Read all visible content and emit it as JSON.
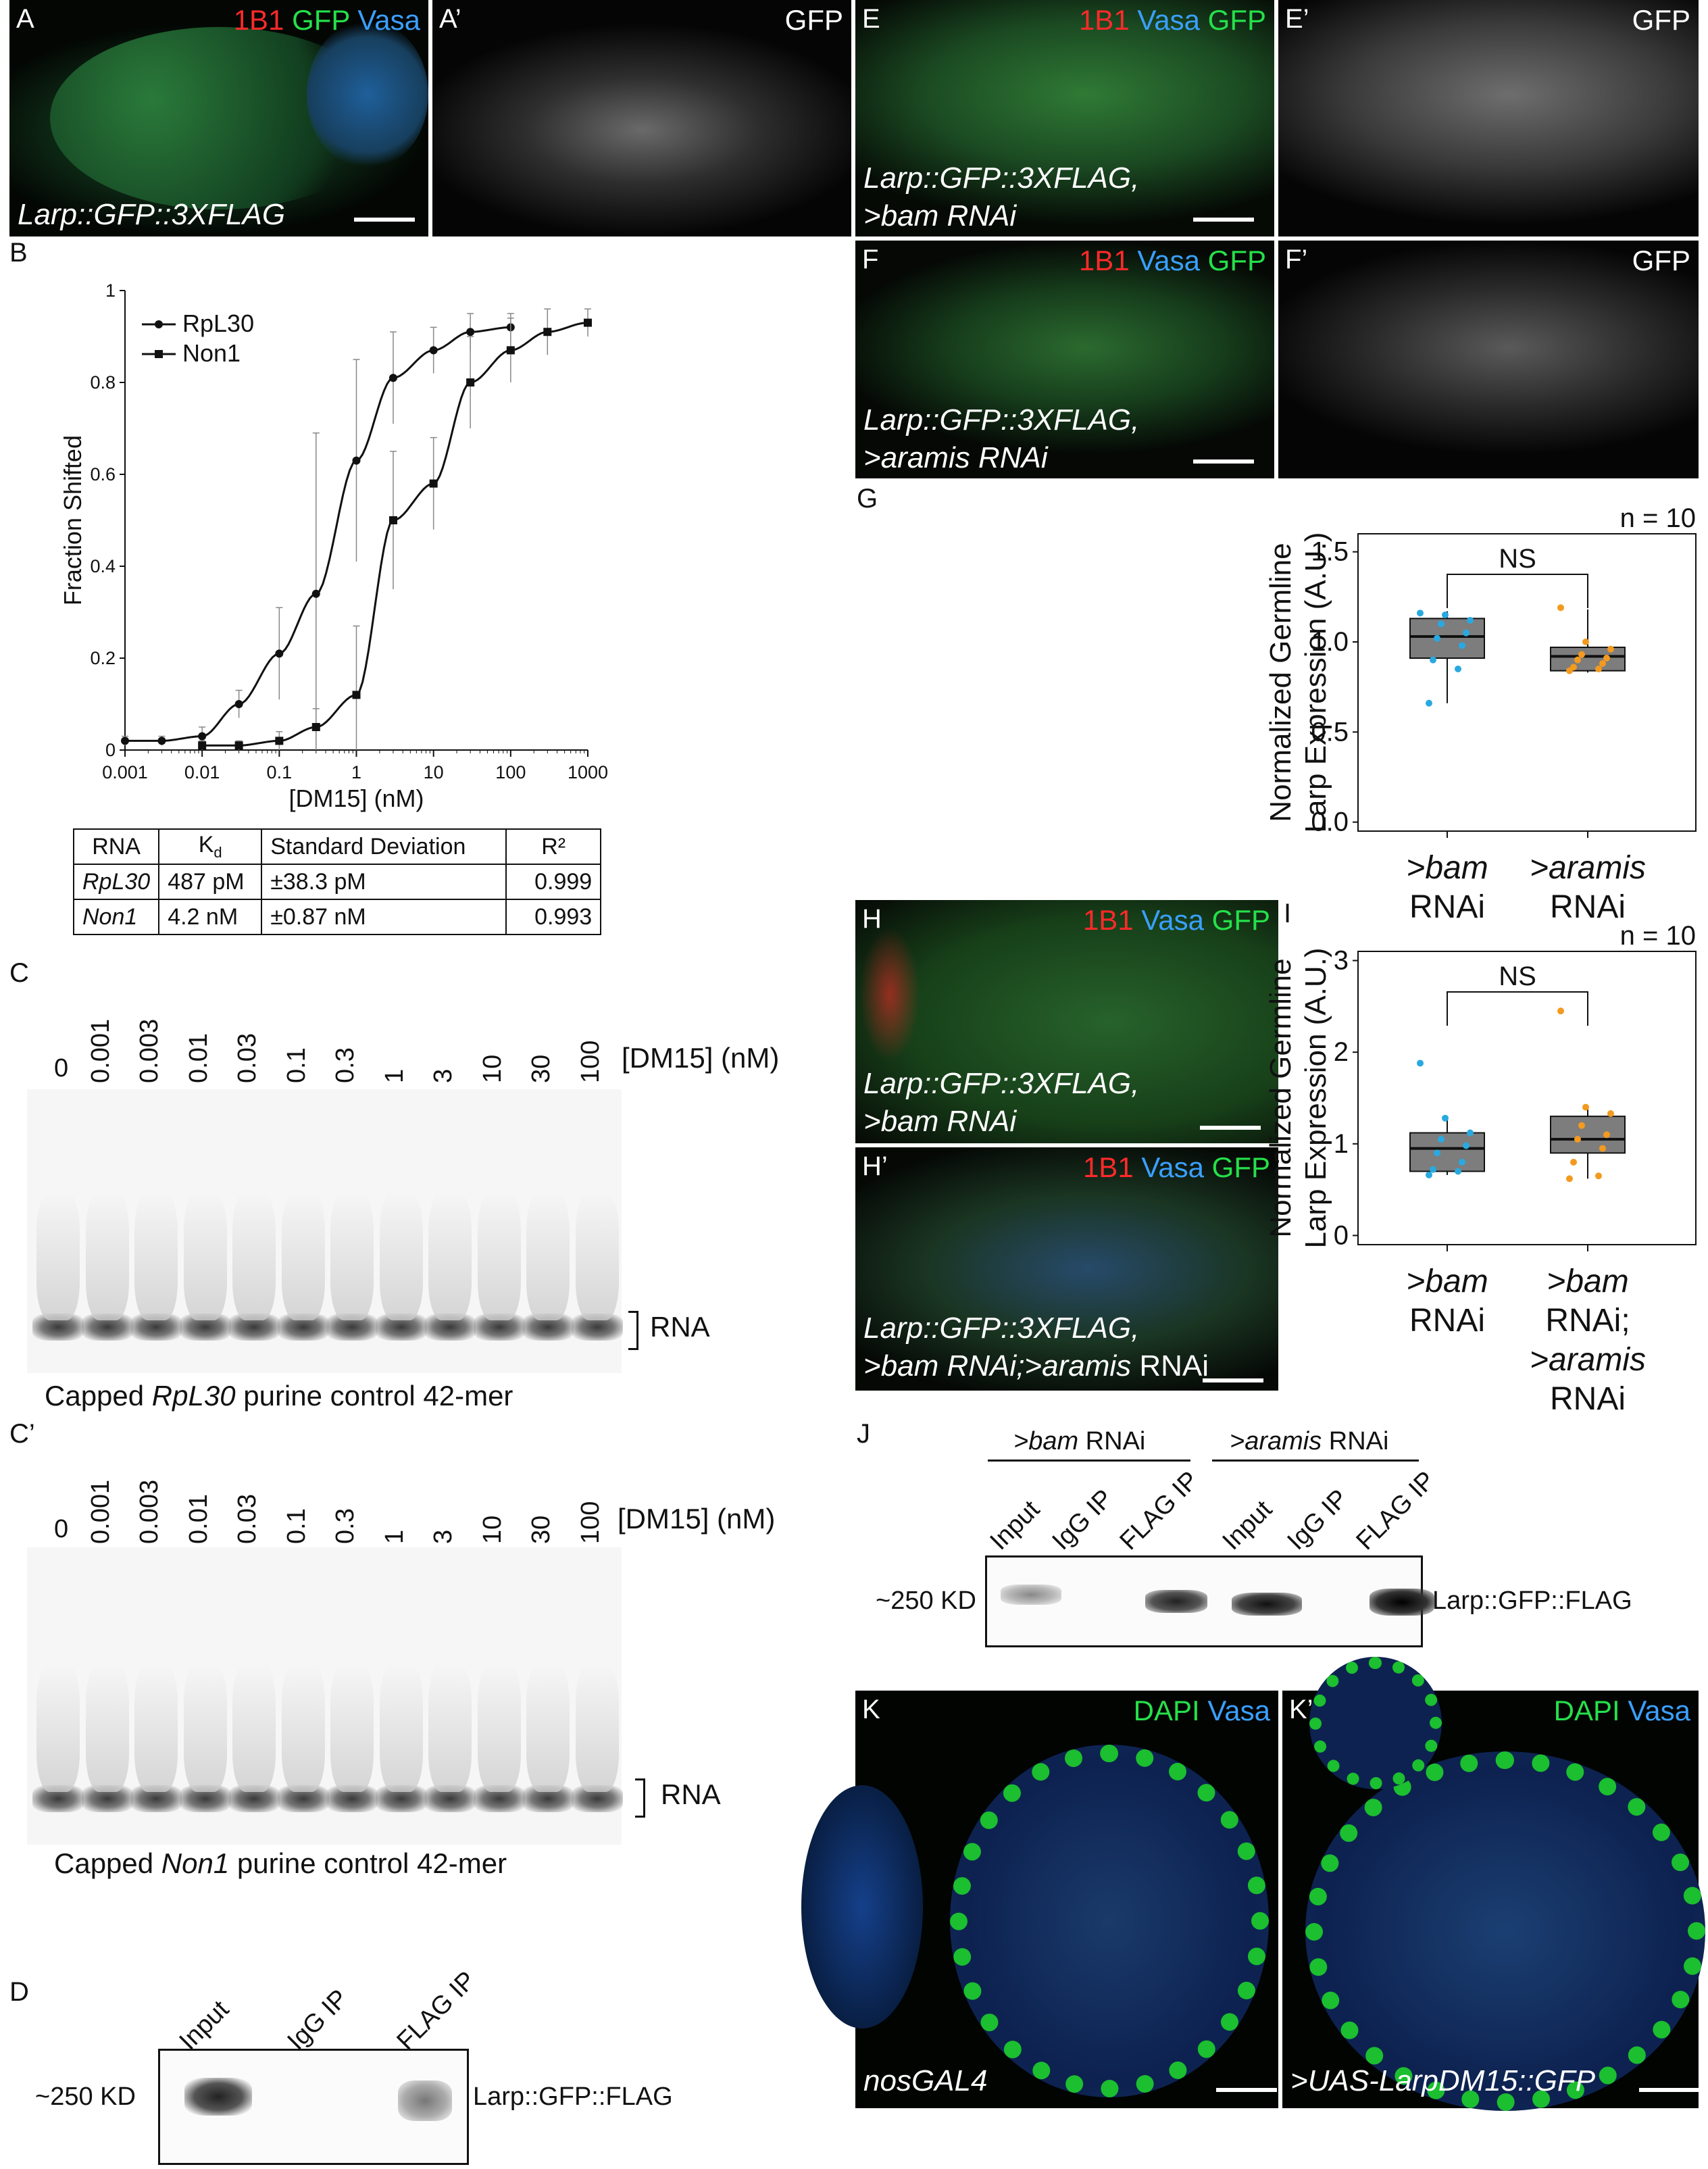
{
  "panels": {
    "A": {
      "letter": "A",
      "ch1": "1B1",
      "ch2": "GFP",
      "ch3": "Vasa",
      "genotype": "Larp::GFP::3XFLAG"
    },
    "A2": {
      "letter": "A’",
      "ch": "GFP"
    },
    "E": {
      "letter": "E",
      "ch1": "1B1",
      "ch2": "Vasa",
      "ch3": "GFP",
      "genotype_l1": "Larp::GFP::3XFLAG,",
      "genotype_l2": ">bam RNAi"
    },
    "E2": {
      "letter": "E’",
      "ch": "GFP"
    },
    "F": {
      "letter": "F",
      "ch1": "1B1",
      "ch2": "Vasa",
      "ch3": "GFP",
      "genotype_l1": "Larp::GFP::3XFLAG,",
      "genotype_l2": ">aramis RNAi"
    },
    "F2": {
      "letter": "F’",
      "ch": "GFP"
    },
    "H": {
      "letter": "H",
      "ch1": "1B1",
      "ch2": "Vasa",
      "ch3": "GFP",
      "genotype_l1": "Larp::GFP::3XFLAG,",
      "genotype_l2": ">bam RNAi"
    },
    "H2": {
      "letter": "H’",
      "ch1": "1B1",
      "ch2": "Vasa",
      "ch3": "GFP",
      "genotype_l1": "Larp::GFP::3XFLAG,",
      "genotype_l2a": ">bam RNAi;>aramis",
      "genotype_l2b": " RNAi"
    },
    "K": {
      "letter": "K",
      "ch1": "DAPI",
      "ch2": "Vasa",
      "genotype": "nosGAL4"
    },
    "K2": {
      "letter": "K’",
      "ch1": "DAPI",
      "ch2": "Vasa",
      "genotype": ">UAS-LarpDM15::GFP"
    }
  },
  "panel_B": {
    "letter": "B",
    "chart_data": {
      "type": "scatter",
      "xlabel": "[DM15] (nM)",
      "ylabel": "Fraction Shifted",
      "x_scale": "log",
      "xlim": [
        0.001,
        1000
      ],
      "ylim": [
        0,
        1
      ],
      "xticks": [
        "0.001",
        "0.01",
        "0.1",
        "1",
        "10",
        "100",
        "1000"
      ],
      "yticks": [
        "0",
        "0.2",
        "0.4",
        "0.6",
        "0.8",
        "1"
      ],
      "legend_position": "top-left",
      "series": [
        {
          "name": "RpL30",
          "marker": "circle",
          "x": [
            0.001,
            0.003,
            0.01,
            0.03,
            0.1,
            0.3,
            1,
            3,
            10,
            30,
            100
          ],
          "y": [
            0.02,
            0.02,
            0.03,
            0.1,
            0.21,
            0.34,
            0.63,
            0.81,
            0.87,
            0.91,
            0.92
          ],
          "err": [
            0.01,
            0.01,
            0.02,
            0.03,
            0.1,
            0.35,
            0.22,
            0.1,
            0.05,
            0.04,
            0.03
          ]
        },
        {
          "name": "Non1",
          "marker": "square",
          "x": [
            0.01,
            0.03,
            0.1,
            0.3,
            1,
            3,
            10,
            30,
            100,
            300,
            1000
          ],
          "y": [
            0.01,
            0.01,
            0.02,
            0.05,
            0.12,
            0.5,
            0.58,
            0.8,
            0.87,
            0.91,
            0.93
          ],
          "err": [
            0.01,
            0.01,
            0.02,
            0.04,
            0.15,
            0.15,
            0.1,
            0.1,
            0.07,
            0.05,
            0.03
          ]
        }
      ]
    }
  },
  "kd_table": {
    "headers": [
      "RNA",
      "K",
      "d",
      "Standard Deviation",
      "R²"
    ],
    "rows": [
      [
        "RpL30",
        "487 pM",
        "±38.3 pM",
        "0.999"
      ],
      [
        "Non1",
        "4.2 nM",
        "±0.87 nM",
        "0.993"
      ]
    ]
  },
  "gels": {
    "concentrations": [
      "0",
      "0.001",
      "0.003",
      "0.01",
      "0.03",
      "0.1",
      "0.3",
      "1",
      "3",
      "10",
      "30",
      "100"
    ],
    "conc_label": "[DM15] (nM)",
    "band_label": "RNA",
    "C": {
      "letter": "C",
      "caption_pre": "Capped ",
      "caption_ital": "RpL30",
      "caption_post": " purine control 42-mer"
    },
    "C2": {
      "letter": "C’",
      "caption_pre": "Capped ",
      "caption_ital": "Non1",
      "caption_post": " purine control 42-mer"
    }
  },
  "panel_D": {
    "letter": "D",
    "lanes": [
      "Input",
      "IgG IP",
      "FLAG IP"
    ],
    "size": "~250 KD",
    "protein": "Larp::GFP::FLAG"
  },
  "panel_J": {
    "letter": "J",
    "group1_ital": ">bam",
    "group1_rest": " RNAi",
    "group2_ital": ">aramis",
    "group2_rest": " RNAi",
    "lanes": [
      "Input",
      "IgG IP",
      "FLAG IP",
      "Input",
      "IgG IP",
      "FLAG IP"
    ],
    "size": "~250 KD",
    "protein": "Larp::GFP::FLAG"
  },
  "panel_G": {
    "letter": "G",
    "n_label": "n = 10",
    "sig": "NS",
    "ylabel_l1": "Normalized Germline",
    "ylabel_l2": "Larp Expression (A.U.)",
    "yticks": [
      "0.0",
      "0.5",
      "1.0",
      "1.5"
    ],
    "cat1_a": ">bam",
    "cat1_b": "RNAi",
    "cat2_a": ">aramis",
    "cat2_b": "RNAi",
    "chart_data": {
      "type": "box",
      "ylim": [
        -0.05,
        1.6
      ],
      "categories": [
        ">bam RNAi",
        ">aramis RNAi"
      ],
      "boxes": [
        {
          "q1": 0.91,
          "median": 1.03,
          "q3": 1.13,
          "min": 0.66,
          "max": 1.17,
          "color": "#29a9e0",
          "points": [
            1.16,
            1.15,
            1.12,
            1.1,
            1.05,
            1.02,
            0.98,
            0.9,
            0.85,
            0.66
          ]
        },
        {
          "q1": 0.84,
          "median": 0.92,
          "q3": 0.97,
          "min": 0.83,
          "max": 1.18,
          "color": "#f39a1f",
          "points": [
            1.19,
            1.0,
            0.96,
            0.93,
            0.91,
            0.9,
            0.88,
            0.86,
            0.85,
            0.84
          ]
        }
      ]
    }
  },
  "panel_I": {
    "letter": "I",
    "n_label": "n = 10",
    "sig": "NS",
    "ylabel_l1": "Normalized Germline",
    "ylabel_l2": "Larp Expression (A.U.)",
    "yticks": [
      "0",
      "1",
      "2",
      "3"
    ],
    "cat1_a": ">bam",
    "cat1_b": "RNAi",
    "cat2_a": ">bam",
    "cat2_b": "RNAi;",
    "cat2_c": ">aramis",
    "cat2_d": "RNAi",
    "chart_data": {
      "type": "box",
      "ylim": [
        -0.1,
        3.1
      ],
      "categories": [
        ">bam RNAi",
        ">bam RNAi; >aramis RNAi"
      ],
      "boxes": [
        {
          "q1": 0.7,
          "median": 0.95,
          "q3": 1.12,
          "min": 0.66,
          "max": 1.3,
          "color": "#29a9e0",
          "points": [
            1.88,
            1.28,
            1.12,
            1.05,
            0.98,
            0.9,
            0.8,
            0.72,
            0.7,
            0.66
          ]
        },
        {
          "q1": 0.9,
          "median": 1.05,
          "q3": 1.3,
          "min": 0.62,
          "max": 1.4,
          "color": "#f39a1f",
          "points": [
            2.45,
            1.4,
            1.33,
            1.2,
            1.1,
            1.05,
            0.95,
            0.8,
            0.65,
            0.62
          ]
        }
      ]
    }
  }
}
